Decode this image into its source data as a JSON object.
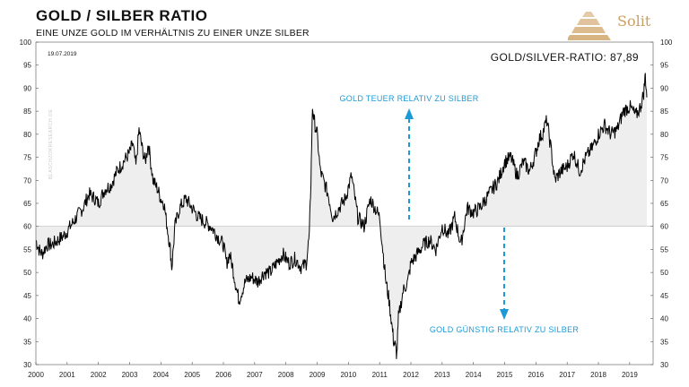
{
  "header": {
    "title": "GOLD / SILBER RATIO",
    "subtitle": "EINE UNZE GOLD IM VERHÄLTNIS ZU EINER UNZE SILBER",
    "logo_text": "Solit"
  },
  "watermark": "BLASCHZOKRESEARCH.DE",
  "colors": {
    "line": "#000000",
    "fill": "#eeeeee",
    "annotation": "#1c9ad6",
    "logo": "#c9a063"
  },
  "chart_data": {
    "type": "line",
    "title": "GOLD / SILBER RATIO",
    "date_label": "19.07.2019",
    "current_label": "GOLD/SILVER-RATIO: 87,89",
    "reference_line": 60,
    "xlim": [
      2000,
      2019.75
    ],
    "ylim": [
      30,
      100
    ],
    "x_ticks": [
      "2000",
      "2001",
      "2002",
      "2003",
      "2004",
      "2005",
      "2006",
      "2007",
      "2008",
      "2009",
      "2010",
      "2011",
      "2012",
      "2013",
      "2014",
      "2015",
      "2016",
      "2017",
      "2018",
      "2019"
    ],
    "y_ticks": [
      30,
      35,
      40,
      45,
      50,
      55,
      60,
      65,
      70,
      75,
      80,
      85,
      90,
      95,
      100
    ],
    "annotations": [
      {
        "text": "GOLD TEUER RELATIV ZU SILBER",
        "direction": "up"
      },
      {
        "text": "GOLD GÜNSTIG RELATIV ZU SILBER",
        "direction": "down"
      }
    ],
    "series": [
      {
        "x": [
          2000.0,
          2000.1,
          2000.2,
          2000.35,
          2000.5,
          2000.7,
          2000.9,
          2001.1,
          2001.3,
          2001.5,
          2001.7,
          2001.9,
          2002.0,
          2002.2,
          2002.4,
          2002.6,
          2002.8,
          2003.0,
          2003.1,
          2003.2,
          2003.3,
          2003.4,
          2003.5,
          2003.6,
          2003.75,
          2003.9,
          2004.0,
          2004.1,
          2004.2,
          2004.3,
          2004.35,
          2004.45,
          2004.6,
          2004.8,
          2005.0,
          2005.2,
          2005.4,
          2005.6,
          2005.8,
          2006.0,
          2006.1,
          2006.2,
          2006.3,
          2006.4,
          2006.5,
          2006.7,
          2006.9,
          2007.1,
          2007.3,
          2007.5,
          2007.7,
          2007.9,
          2008.1,
          2008.3,
          2008.5,
          2008.65,
          2008.75,
          2008.8,
          2008.85,
          2008.9,
          2009.0,
          2009.1,
          2009.2,
          2009.35,
          2009.5,
          2009.7,
          2009.9,
          2010.1,
          2010.3,
          2010.5,
          2010.7,
          2010.85,
          2011.0,
          2011.1,
          2011.2,
          2011.3,
          2011.4,
          2011.45,
          2011.5,
          2011.55,
          2011.6,
          2011.75,
          2011.9,
          2012.0,
          2012.2,
          2012.4,
          2012.6,
          2012.8,
          2013.0,
          2013.2,
          2013.4,
          2013.6,
          2013.8,
          2014.0,
          2014.2,
          2014.4,
          2014.6,
          2014.8,
          2015.0,
          2015.2,
          2015.4,
          2015.6,
          2015.8,
          2016.0,
          2016.1,
          2016.2,
          2016.35,
          2016.5,
          2016.6,
          2016.8,
          2017.0,
          2017.2,
          2017.4,
          2017.6,
          2017.8,
          2018.0,
          2018.2,
          2018.4,
          2018.6,
          2018.8,
          2019.0,
          2019.2,
          2019.35,
          2019.45,
          2019.5,
          2019.55
        ],
        "y": [
          57,
          55,
          54,
          56,
          56,
          57,
          58,
          60,
          62,
          64,
          67,
          66,
          65,
          68,
          69,
          72,
          74,
          76,
          78,
          73,
          81,
          77,
          74,
          78,
          70,
          68,
          66,
          65,
          60,
          55,
          51,
          60,
          64,
          66,
          64,
          62,
          61,
          60,
          58,
          56,
          52,
          54,
          51,
          47,
          44,
          48,
          49,
          48,
          50,
          50,
          52,
          54,
          52,
          53,
          51,
          52,
          58,
          70,
          86,
          83,
          80,
          72,
          70,
          67,
          62,
          64,
          66,
          71,
          62,
          60,
          66,
          64,
          62,
          55,
          48,
          44,
          38,
          35,
          34,
          32,
          40,
          46,
          48,
          52,
          54,
          56,
          57,
          55,
          60,
          58,
          62,
          56,
          64,
          63,
          64,
          66,
          68,
          70,
          74,
          75,
          71,
          74,
          72,
          76,
          79,
          80,
          83,
          76,
          70,
          72,
          73,
          76,
          72,
          75,
          77,
          80,
          82,
          80,
          81,
          85,
          86,
          84,
          86,
          89,
          93,
          88
        ]
      }
    ]
  }
}
